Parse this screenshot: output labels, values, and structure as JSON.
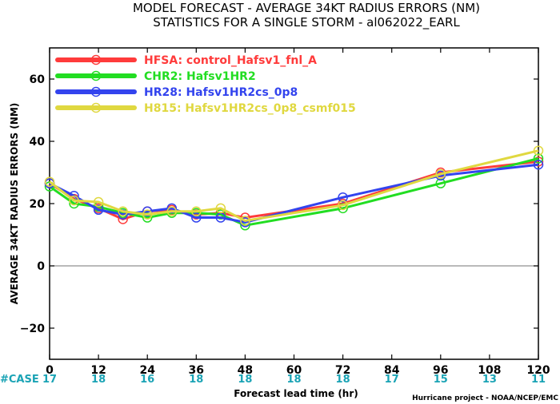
{
  "title_line1": "MODEL FORECAST - AVERAGE 34KT RADIUS ERRORS (NM)",
  "title_line2": "STATISTICS FOR A SINGLE STORM - al062022_EARL",
  "credit": "Hurricane project - NOAA/NCEP/EMC",
  "case_label": "#CASE",
  "colors": {
    "case": "#1aa3b5",
    "zero_line": "#909090"
  },
  "chart_data": {
    "type": "line",
    "xlabel": "Forecast lead time (hr)",
    "ylabel": "AVERAGE 34KT RADIUS ERRORS (NM)",
    "xlim": [
      0,
      120
    ],
    "ylim": [
      -30,
      70
    ],
    "xticks": [
      0,
      12,
      24,
      36,
      48,
      60,
      72,
      84,
      96,
      108,
      120
    ],
    "yticks": [
      -20,
      0,
      20,
      40,
      60
    ],
    "case_counts": [
      {
        "x": 0,
        "n": "17"
      },
      {
        "x": 12,
        "n": "18"
      },
      {
        "x": 24,
        "n": "16"
      },
      {
        "x": 36,
        "n": "18"
      },
      {
        "x": 48,
        "n": "18"
      },
      {
        "x": 60,
        "n": "18"
      },
      {
        "x": 72,
        "n": "18"
      },
      {
        "x": 84,
        "n": "17"
      },
      {
        "x": 96,
        "n": "15"
      },
      {
        "x": 108,
        "n": "13"
      },
      {
        "x": 120,
        "n": "11"
      }
    ],
    "series": [
      {
        "name": "HFSA: control_Hafsv1_fnl_A",
        "color": "#ff3b3b",
        "x": [
          0,
          6,
          12,
          18,
          24,
          30,
          36,
          42,
          48,
          72,
          96,
          120
        ],
        "y": [
          26.5,
          21.5,
          18.5,
          15.0,
          17.5,
          18.0,
          16.5,
          17.0,
          15.5,
          20.0,
          30.0,
          33.5
        ]
      },
      {
        "name": "CHR2: Hafsv1HR2",
        "color": "#22dd22",
        "x": [
          0,
          6,
          12,
          18,
          24,
          30,
          36,
          42,
          48,
          72,
          96,
          120
        ],
        "y": [
          25.5,
          20.0,
          19.0,
          17.0,
          15.5,
          17.0,
          17.0,
          16.5,
          13.0,
          18.5,
          26.5,
          34.5
        ]
      },
      {
        "name": "HR28: Hafsv1HR2cs_0p8",
        "color": "#3344ee",
        "x": [
          0,
          6,
          12,
          18,
          24,
          30,
          36,
          42,
          48,
          72,
          96,
          120
        ],
        "y": [
          26.5,
          22.5,
          18.0,
          16.5,
          17.5,
          18.5,
          15.5,
          15.5,
          14.0,
          22.0,
          29.0,
          32.5
        ]
      },
      {
        "name": "H815: Hafsv1HR2cs_0p8_csmf015",
        "color": "#e0d840",
        "x": [
          0,
          6,
          12,
          18,
          24,
          30,
          36,
          42,
          48,
          72,
          96,
          120
        ],
        "y": [
          27.0,
          21.0,
          20.5,
          17.5,
          16.5,
          17.5,
          17.5,
          18.5,
          14.5,
          19.5,
          29.5,
          37.0
        ]
      }
    ]
  }
}
